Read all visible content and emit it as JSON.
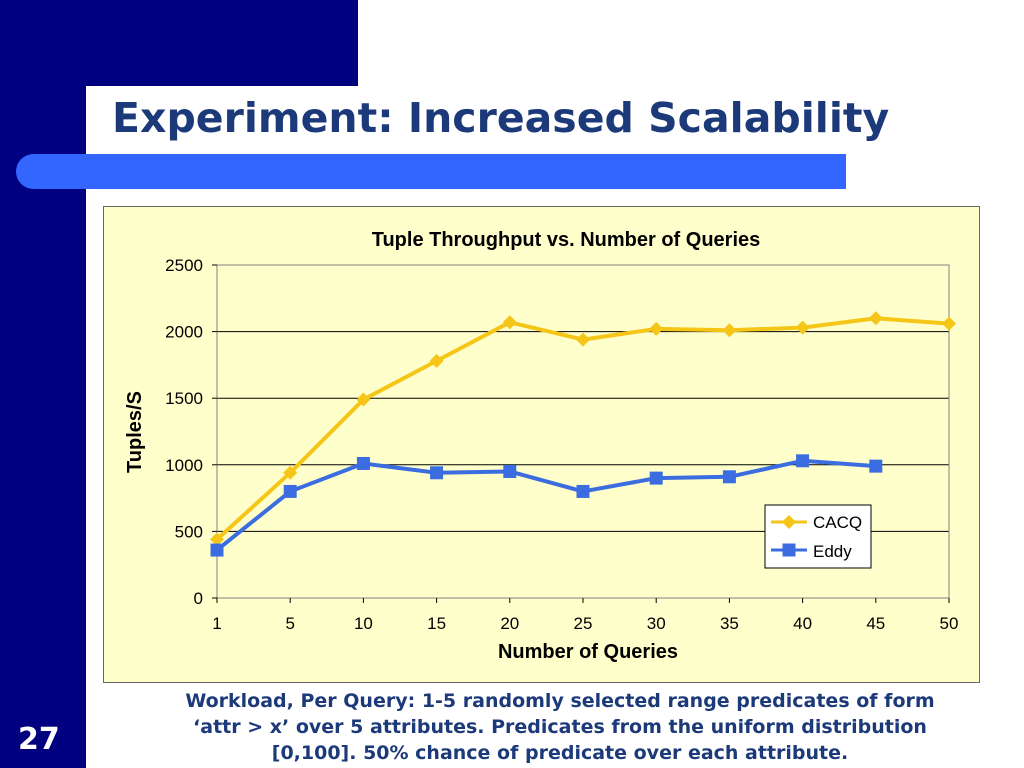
{
  "slide": {
    "title": "Experiment: Increased Scalability",
    "number": "27",
    "caption_lines": [
      "Workload, Per Query: 1-5 randomly selected range predicates of form",
      "‘attr > x’ over 5 attributes.  Predicates from the uniform distribution",
      "[0,100].  50% chance of predicate over each attribute."
    ]
  },
  "colors": {
    "slide_band": "#000080",
    "accent_bar": "#3366ff",
    "title_text": "#1c3a7a",
    "plot_background": "#ffffcc",
    "cacq": "#f5c518",
    "eddy": "#3b6de0"
  },
  "chart_data": {
    "type": "line",
    "title": "Tuple Throughput vs. Number of Queries",
    "xlabel": "Number of Queries",
    "ylabel": "Tuples/S",
    "categories": [
      "1",
      "5",
      "10",
      "15",
      "20",
      "25",
      "30",
      "35",
      "40",
      "45",
      "50"
    ],
    "ylim": [
      0,
      2500
    ],
    "yticks": [
      0,
      500,
      1000,
      1500,
      2000,
      2500
    ],
    "grid": "horizontal",
    "legend_position": "bottom-right",
    "series": [
      {
        "name": "CACQ",
        "marker": "diamond",
        "color": "#f5c518",
        "values": [
          440,
          940,
          1490,
          1780,
          2070,
          1940,
          2020,
          2010,
          2030,
          2100,
          2060
        ]
      },
      {
        "name": "Eddy",
        "marker": "square",
        "color": "#3b6de0",
        "values": [
          360,
          800,
          1010,
          940,
          950,
          800,
          900,
          910,
          1030,
          990,
          null
        ]
      }
    ]
  }
}
